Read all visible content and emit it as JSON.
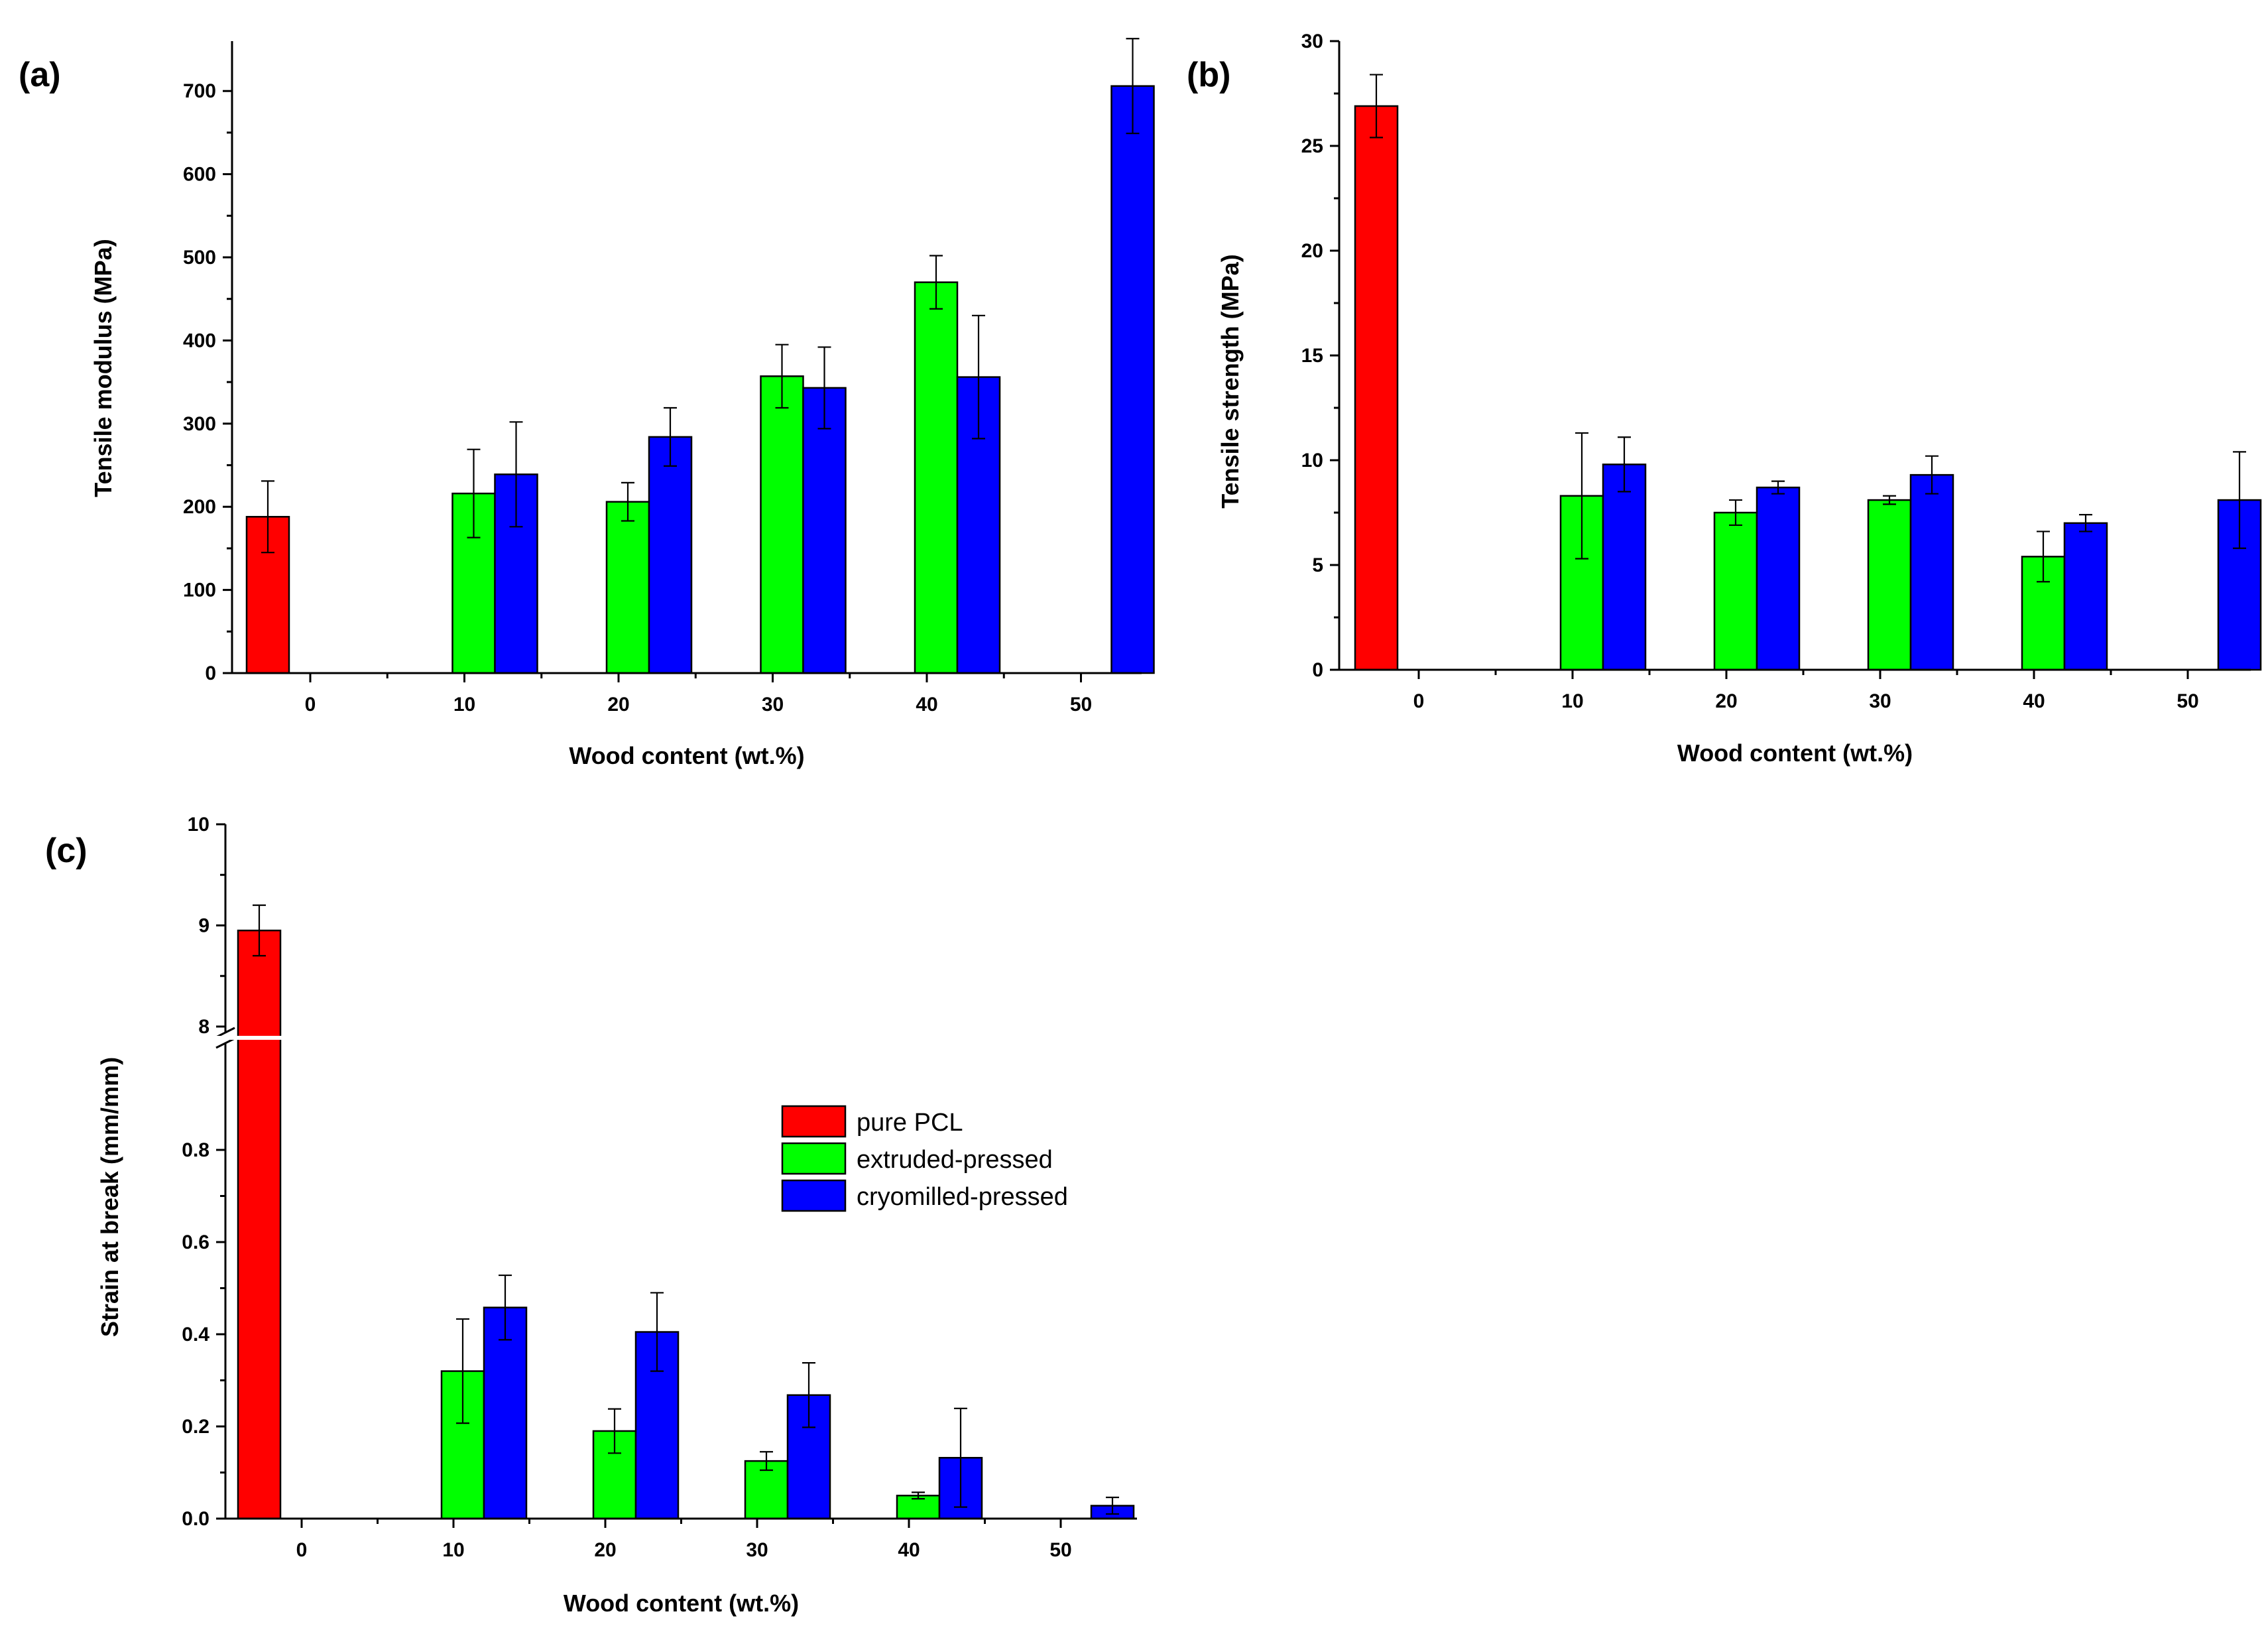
{
  "colors": {
    "pure_pcl": "#ff0000",
    "extruded_pressed": "#00ff00",
    "cryomilled_pressed": "#0000ff"
  },
  "legend": [
    {
      "key": "pure_pcl",
      "label": "pure PCL"
    },
    {
      "key": "extruded_pressed",
      "label": "extruded-pressed"
    },
    {
      "key": "cryomilled_pressed",
      "label": "cryomilled-pressed"
    }
  ],
  "chart_data": [
    {
      "panel": "(a)",
      "type": "bar",
      "xlabel": "Wood content (wt.%)",
      "ylabel": "Tensile modulus (MPa)",
      "categories": [
        "0",
        "10",
        "20",
        "30",
        "40",
        "50"
      ],
      "ylim": [
        0,
        760
      ],
      "yticks": [
        0,
        100,
        200,
        300,
        400,
        500,
        600,
        700
      ],
      "ytick_labels": [
        "0",
        "100",
        "200",
        "300",
        "400",
        "500",
        "600",
        "700"
      ],
      "series": [
        {
          "key": "pure_pcl",
          "name": "pure PCL",
          "values": [
            188,
            null,
            null,
            null,
            null,
            null
          ],
          "errors": [
            43,
            null,
            null,
            null,
            null,
            null
          ]
        },
        {
          "key": "extruded_pressed",
          "name": "extruded-pressed",
          "values": [
            null,
            216,
            206,
            357,
            470,
            null
          ],
          "errors": [
            null,
            53,
            23,
            38,
            32,
            null
          ]
        },
        {
          "key": "cryomilled_pressed",
          "name": "cryomilled-pressed",
          "values": [
            null,
            239,
            284,
            343,
            356,
            706
          ],
          "errors": [
            null,
            63,
            35,
            49,
            74,
            57
          ]
        }
      ]
    },
    {
      "panel": "(b)",
      "type": "bar",
      "xlabel": "Wood content (wt.%)",
      "ylabel": "Tensile strength (MPa)",
      "categories": [
        "0",
        "10",
        "20",
        "30",
        "40",
        "50"
      ],
      "ylim": [
        0,
        30
      ],
      "yticks": [
        0,
        5,
        10,
        15,
        20,
        25,
        30
      ],
      "ytick_labels": [
        "0",
        "5",
        "10",
        "15",
        "20",
        "25",
        "30"
      ],
      "series": [
        {
          "key": "pure_pcl",
          "name": "pure PCL",
          "values": [
            26.9,
            null,
            null,
            null,
            null,
            null
          ],
          "errors": [
            1.5,
            null,
            null,
            null,
            null,
            null
          ]
        },
        {
          "key": "extruded_pressed",
          "name": "extruded-pressed",
          "values": [
            null,
            8.3,
            7.5,
            8.1,
            5.4,
            null
          ],
          "errors": [
            null,
            3.0,
            0.6,
            0.2,
            1.2,
            null
          ]
        },
        {
          "key": "cryomilled_pressed",
          "name": "cryomilled-pressed",
          "values": [
            null,
            9.8,
            8.7,
            9.3,
            7.0,
            8.1
          ],
          "errors": [
            null,
            1.3,
            0.3,
            0.9,
            0.4,
            2.3
          ]
        }
      ]
    },
    {
      "panel": "(c)",
      "type": "bar",
      "xlabel": "Wood content (wt.%)",
      "ylabel": "Strain at break (mm/mm)",
      "categories": [
        "0",
        "10",
        "20",
        "30",
        "40",
        "50"
      ],
      "broken_axis": {
        "lower_range": [
          0,
          1.0
        ],
        "upper_range": [
          8,
          10
        ]
      },
      "yticks": [
        0,
        0.2,
        0.4,
        0.6,
        0.8,
        8,
        9,
        10
      ],
      "ytick_labels": [
        "0.0",
        "0.2",
        "0.4",
        "0.6",
        "0.8",
        "8",
        "9",
        "10"
      ],
      "series": [
        {
          "key": "pure_pcl",
          "name": "pure PCL",
          "values": [
            8.95,
            null,
            null,
            null,
            null,
            null
          ],
          "errors": [
            0.25,
            null,
            null,
            null,
            null,
            null
          ]
        },
        {
          "key": "extruded_pressed",
          "name": "extruded-pressed",
          "values": [
            null,
            0.32,
            0.19,
            0.125,
            0.05,
            null
          ],
          "errors": [
            null,
            0.113,
            0.048,
            0.02,
            0.007,
            null
          ]
        },
        {
          "key": "cryomilled_pressed",
          "name": "cryomilled-pressed",
          "values": [
            null,
            0.458,
            0.405,
            0.268,
            0.132,
            0.028
          ],
          "errors": [
            null,
            0.07,
            0.085,
            0.07,
            0.107,
            0.018
          ]
        }
      ]
    }
  ]
}
